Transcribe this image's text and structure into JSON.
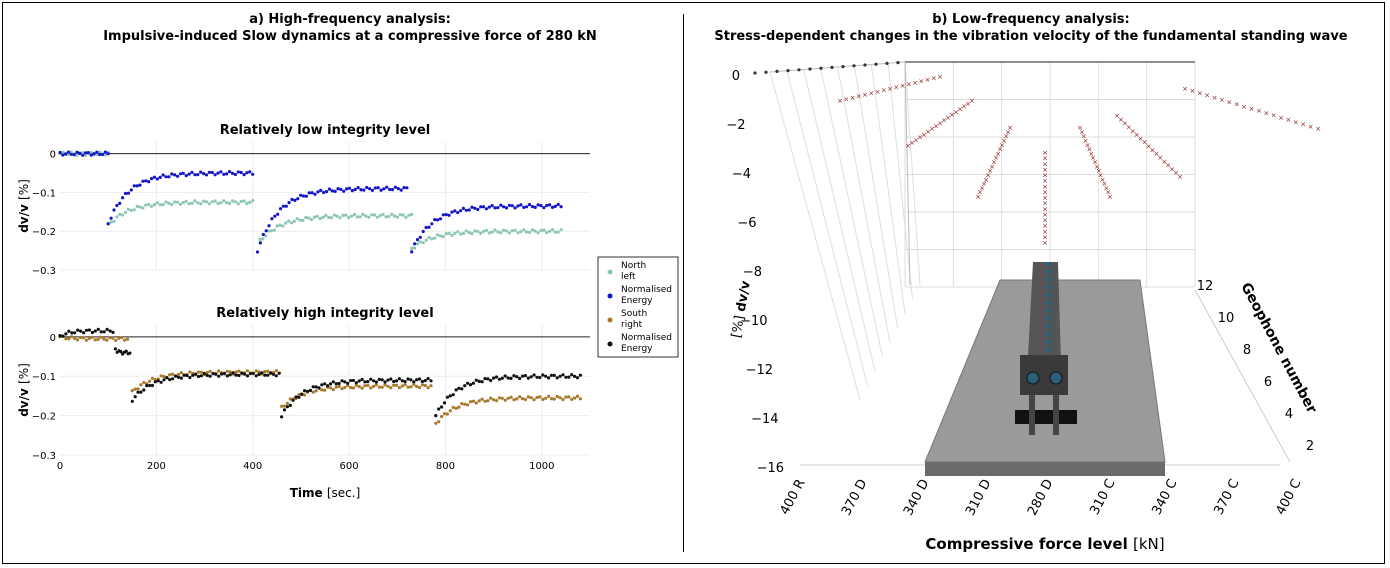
{
  "panel_a": {
    "title_line1": "a) High-frequency analysis:",
    "title_line2": "Impulsive-induced Slow dynamics at a compressive force of 280 kN"
  },
  "panel_b": {
    "title_line1": "b) Low-frequency analysis:",
    "title_line2": "Stress-dependent changes in the vibration velocity of the fundamental standing wave"
  },
  "colors": {
    "north_left": "#8cc6b7",
    "norm_energy_blue": "#1414c8",
    "south_right": "#a8792a",
    "norm_energy_black": "#111111",
    "dark_red": "#8b1010",
    "geophone_blue": "#2b5f7a",
    "beam": "#8a8a8a"
  },
  "chart_data": [
    {
      "type": "scatter",
      "title": "Relatively low integrity level",
      "xlabel": "",
      "ylabel": "dv/v [%]",
      "xlim": [
        0,
        1100
      ],
      "ylim": [
        -0.3,
        0.03
      ],
      "yticks": [
        0,
        -0.1,
        -0.2,
        -0.3
      ],
      "ytick_labels": [
        "0",
        "−0.1",
        "−0.2",
        "−0.3"
      ],
      "series": [
        {
          "name": "North left",
          "segments": [
            {
              "x0": 0,
              "x1": 100,
              "start": 0.0,
              "end": 0.0
            },
            {
              "x0": 100,
              "x1": 400,
              "start": -0.185,
              "end": -0.125
            },
            {
              "x0": 415,
              "x1": 730,
              "start": -0.225,
              "end": -0.16
            },
            {
              "x0": 730,
              "x1": 1040,
              "start": -0.245,
              "end": -0.2
            }
          ]
        },
        {
          "name": "Normalised Energy",
          "segments": [
            {
              "x0": 0,
              "x1": 100,
              "start": 0.0,
              "end": 0.0
            },
            {
              "x0": 100,
              "x1": 400,
              "start": -0.18,
              "end": -0.05
            },
            {
              "x0": 410,
              "x1": 720,
              "start": -0.25,
              "end": -0.09
            },
            {
              "x0": 730,
              "x1": 1040,
              "start": -0.25,
              "end": -0.135
            }
          ]
        }
      ],
      "grid": true
    },
    {
      "type": "scatter",
      "title": "Relatively high integrity level",
      "xlabel": "Time [sec.]",
      "ylabel": "dv/v [%]",
      "xlim": [
        0,
        1100
      ],
      "ylim": [
        -0.3,
        0.03
      ],
      "xticks": [
        0,
        200,
        400,
        600,
        800,
        1000
      ],
      "xtick_labels": [
        "0",
        "200",
        "400",
        "600",
        "800",
        "1000"
      ],
      "yticks": [
        0,
        -0.1,
        -0.2,
        -0.3
      ],
      "ytick_labels": [
        "0",
        "−0.1",
        "−0.2",
        "−0.3"
      ],
      "series": [
        {
          "name": "South right",
          "segments": [
            {
              "x0": 0,
              "x1": 140,
              "start": 0.0,
              "end": -0.005
            },
            {
              "x0": 150,
              "x1": 455,
              "start": -0.14,
              "end": -0.09
            },
            {
              "x0": 460,
              "x1": 770,
              "start": -0.18,
              "end": -0.125
            },
            {
              "x0": 780,
              "x1": 1080,
              "start": -0.22,
              "end": -0.155
            }
          ]
        },
        {
          "name": "Normalised Energy",
          "segments": [
            {
              "x0": 0,
              "x1": 110,
              "start": 0.0,
              "end": 0.015
            },
            {
              "x0": 115,
              "x1": 145,
              "start": -0.03,
              "end": -0.04
            },
            {
              "x0": 150,
              "x1": 455,
              "start": -0.16,
              "end": -0.095
            },
            {
              "x0": 460,
              "x1": 770,
              "start": -0.2,
              "end": -0.11
            },
            {
              "x0": 780,
              "x1": 1080,
              "start": -0.2,
              "end": -0.1
            }
          ]
        }
      ],
      "grid": true
    },
    {
      "type": "scatter",
      "title": "",
      "xlabel": "Compressive force level [kN]",
      "ylabel": "dv/v [%]",
      "zlabel": "Geophone number",
      "x_categories": [
        "400 R",
        "370 D",
        "340 D",
        "310 D",
        "280 D",
        "310 C",
        "340 C",
        "370 C",
        "400 C"
      ],
      "yticks": [
        0,
        -2,
        -4,
        -6,
        -8,
        -10,
        -12,
        -14,
        -16
      ],
      "ytick_labels": [
        "0",
        "−2",
        "−4",
        "−6",
        "−8",
        "−10",
        "−12",
        "−14",
        "−16"
      ],
      "zticks": [
        2,
        4,
        6,
        8,
        10,
        12
      ],
      "ztick_labels": [
        "2",
        "4",
        "6",
        "8",
        "10",
        "12"
      ],
      "grid": true
    }
  ],
  "legend": {
    "items": [
      {
        "line1": "North",
        "line2": "left"
      },
      {
        "line1": "Normalised",
        "line2": "Energy"
      },
      {
        "line1": "South",
        "line2": "right"
      },
      {
        "line1": "Normalised",
        "line2": "Energy"
      }
    ]
  }
}
